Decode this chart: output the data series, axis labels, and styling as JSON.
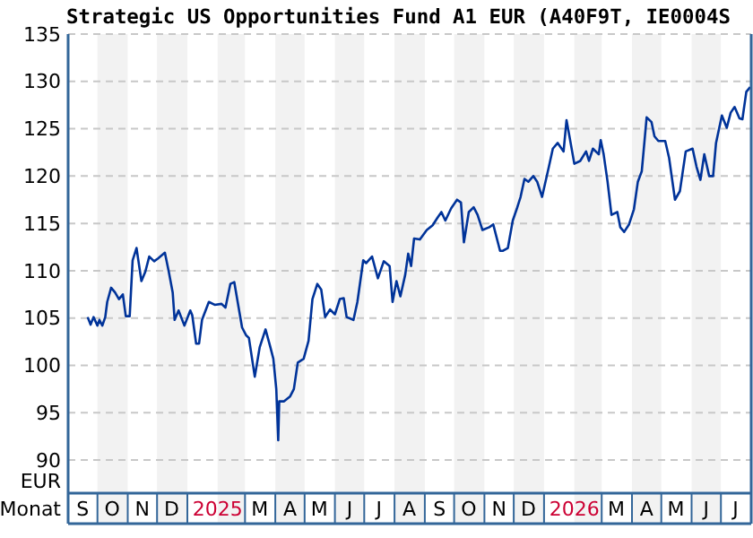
{
  "chart_data": {
    "type": "line",
    "title": "Strategic US Opportunities Fund A1 EUR (A40F9T, IE0004S",
    "xlabel": "Monat",
    "ylabel": "EUR",
    "xlim": [
      "2024-09-01",
      "2026-08-01"
    ],
    "xticks": [
      {
        "value": "2024-09-16",
        "label": "S"
      },
      {
        "value": "2024-10-16",
        "label": "O"
      },
      {
        "value": "2024-11-16",
        "label": "N"
      },
      {
        "value": "2024-12-16",
        "label": "D"
      },
      {
        "value": "2025-02-01",
        "label": "2025"
      },
      {
        "value": "2025-03-16",
        "label": "M"
      },
      {
        "value": "2025-04-16",
        "label": "A"
      },
      {
        "value": "2025-05-16",
        "label": "M"
      },
      {
        "value": "2025-06-16",
        "label": "J"
      },
      {
        "value": "2025-07-16",
        "label": "J"
      },
      {
        "value": "2025-08-16",
        "label": "A"
      },
      {
        "value": "2025-09-16",
        "label": "S"
      },
      {
        "value": "2025-10-16",
        "label": "O"
      },
      {
        "value": "2025-11-16",
        "label": "N"
      },
      {
        "value": "2025-12-16",
        "label": "D"
      },
      {
        "value": "2026-02-01",
        "label": "2026"
      },
      {
        "value": "2026-03-16",
        "label": "M"
      },
      {
        "value": "2026-04-16",
        "label": "A"
      },
      {
        "value": "2026-05-16",
        "label": "M"
      },
      {
        "value": "2026-06-16",
        "label": "J"
      },
      {
        "value": "2026-07-16",
        "label": "J"
      }
    ],
    "ylim": [
      86.5,
      135
    ],
    "yticks": [
      90,
      95,
      100,
      105,
      110,
      115,
      120,
      125,
      130,
      135
    ],
    "grid": "y",
    "bands": [
      {
        "axis": "x",
        "from": "2024-10-01",
        "to": "2024-11-01",
        "color": "#f2f2f2"
      },
      {
        "axis": "x",
        "from": "2024-12-01",
        "to": "2025-01-01",
        "color": "#f2f2f2"
      },
      {
        "axis": "x",
        "from": "2025-02-01",
        "to": "2025-03-01",
        "color": "#f2f2f2"
      },
      {
        "axis": "x",
        "from": "2025-04-01",
        "to": "2025-05-01",
        "color": "#f2f2f2"
      },
      {
        "axis": "x",
        "from": "2025-06-01",
        "to": "2025-07-01",
        "color": "#f2f2f2"
      },
      {
        "axis": "x",
        "from": "2025-08-01",
        "to": "2025-09-01",
        "color": "#f2f2f2"
      },
      {
        "axis": "x",
        "from": "2025-10-01",
        "to": "2025-11-01",
        "color": "#f2f2f2"
      },
      {
        "axis": "x",
        "from": "2025-12-01",
        "to": "2026-01-01",
        "color": "#f2f2f2"
      },
      {
        "axis": "x",
        "from": "2026-02-01",
        "to": "2026-03-01",
        "color": "#f2f2f2"
      },
      {
        "axis": "x",
        "from": "2026-04-01",
        "to": "2026-05-01",
        "color": "#f2f2f2"
      },
      {
        "axis": "x",
        "from": "2026-06-01",
        "to": "2026-07-01",
        "color": "#f2f2f2"
      }
    ],
    "series": [
      {
        "color": "#003399",
        "x": [
          "2024-09-21",
          "2024-09-24",
          "2024-09-27",
          "2024-10-01",
          "2024-10-03",
          "2024-10-06",
          "2024-10-09",
          "2024-10-11",
          "2024-10-15",
          "2024-10-19",
          "2024-10-23",
          "2024-10-27",
          "2024-10-30",
          "2024-11-03",
          "2024-11-06",
          "2024-11-10",
          "2024-11-15",
          "2024-11-19",
          "2024-11-23",
          "2024-11-28",
          "2024-12-02",
          "2024-12-09",
          "2024-12-13",
          "2024-12-17",
          "2024-12-19",
          "2024-12-23",
          "2024-12-29",
          "2025-01-04",
          "2025-01-06",
          "2025-01-10",
          "2025-01-13",
          "2025-01-16",
          "2025-01-23",
          "2025-01-29",
          "2025-02-05",
          "2025-02-09",
          "2025-02-14",
          "2025-02-18",
          "2025-02-22",
          "2025-02-26",
          "2025-03-02",
          "2025-03-05",
          "2025-03-11",
          "2025-03-16",
          "2025-03-22",
          "2025-03-27",
          "2025-03-30",
          "2025-04-02",
          "2025-04-04",
          "2025-04-05",
          "2025-04-10",
          "2025-04-16",
          "2025-04-20",
          "2025-04-24",
          "2025-04-30",
          "2025-05-05",
          "2025-05-09",
          "2025-05-14",
          "2025-05-18",
          "2025-05-22",
          "2025-05-27",
          "2025-06-01",
          "2025-06-06",
          "2025-06-10",
          "2025-06-13",
          "2025-06-20",
          "2025-06-24",
          "2025-06-30",
          "2025-07-03",
          "2025-07-09",
          "2025-07-15",
          "2025-07-21",
          "2025-07-27",
          "2025-07-30",
          "2025-08-03",
          "2025-08-07",
          "2025-08-12",
          "2025-08-15",
          "2025-08-18",
          "2025-08-21",
          "2025-08-27",
          "2025-09-03",
          "2025-09-09",
          "2025-09-14",
          "2025-09-18",
          "2025-09-22",
          "2025-09-28",
          "2025-10-04",
          "2025-10-08",
          "2025-10-11",
          "2025-10-16",
          "2025-10-21",
          "2025-10-25",
          "2025-10-30",
          "2025-11-06",
          "2025-11-10",
          "2025-11-17",
          "2025-11-20",
          "2025-11-25",
          "2025-11-30",
          "2025-12-04",
          "2025-12-08",
          "2025-12-12",
          "2025-12-16",
          "2025-12-21",
          "2025-12-25",
          "2025-12-30",
          "2026-01-06",
          "2026-01-10",
          "2026-01-15",
          "2026-01-21",
          "2026-01-24",
          "2026-01-27",
          "2026-02-01",
          "2026-02-07",
          "2026-02-13",
          "2026-02-16",
          "2026-02-20",
          "2026-02-26",
          "2026-02-28",
          "2026-03-03",
          "2026-03-07",
          "2026-03-11",
          "2026-03-17",
          "2026-03-20",
          "2026-03-24",
          "2026-03-29",
          "2026-04-03",
          "2026-04-07",
          "2026-04-11",
          "2026-04-16",
          "2026-04-21",
          "2026-04-24",
          "2026-04-28",
          "2026-05-05",
          "2026-05-09",
          "2026-05-12",
          "2026-05-15",
          "2026-05-20",
          "2026-05-26",
          "2026-06-02",
          "2026-06-06",
          "2026-06-10",
          "2026-06-14",
          "2026-06-19",
          "2026-06-23",
          "2026-06-26",
          "2026-07-02",
          "2026-07-07",
          "2026-07-11",
          "2026-07-15",
          "2026-07-20",
          "2026-07-23",
          "2026-07-27",
          "2026-07-31"
        ],
        "values": [
          105.1,
          104.3,
          105.1,
          104.2,
          104.8,
          104.2,
          105.1,
          106.7,
          108.2,
          107.7,
          107.0,
          107.5,
          105.2,
          105.2,
          111.1,
          112.4,
          108.9,
          109.9,
          111.5,
          111.0,
          111.3,
          111.9,
          109.9,
          107.7,
          104.8,
          105.8,
          104.2,
          105.8,
          105.3,
          102.3,
          102.3,
          104.8,
          106.7,
          106.4,
          106.5,
          106.1,
          108.6,
          108.8,
          106.4,
          104.0,
          103.2,
          102.9,
          98.8,
          101.9,
          103.8,
          101.9,
          100.7,
          97.5,
          92.1,
          96.2,
          96.2,
          96.7,
          97.5,
          100.3,
          100.7,
          102.6,
          107.0,
          108.6,
          108.0,
          105.1,
          105.9,
          105.4,
          107.0,
          107.1,
          105.1,
          104.8,
          106.7,
          111.1,
          110.8,
          111.5,
          109.2,
          111.0,
          110.5,
          106.7,
          108.9,
          107.3,
          109.6,
          111.8,
          110.5,
          113.4,
          113.3,
          114.3,
          114.8,
          115.6,
          116.2,
          115.3,
          116.6,
          117.5,
          117.2,
          113.0,
          116.2,
          116.7,
          115.9,
          114.3,
          114.6,
          114.9,
          112.1,
          112.1,
          112.4,
          115.3,
          116.5,
          117.8,
          119.7,
          119.4,
          120.0,
          119.4,
          117.8,
          121.0,
          122.9,
          123.5,
          122.6,
          125.9,
          124.2,
          121.3,
          121.6,
          122.6,
          121.6,
          122.9,
          122.3,
          123.8,
          122.3,
          119.4,
          115.9,
          116.2,
          114.6,
          114.1,
          114.9,
          116.5,
          119.4,
          120.5,
          126.2,
          125.7,
          124.2,
          123.7,
          123.7,
          121.9,
          119.7,
          117.5,
          118.4,
          122.6,
          122.9,
          121.0,
          119.6,
          122.3,
          120.0,
          120.0,
          123.5,
          126.4,
          125.1,
          126.7,
          127.3,
          126.1,
          126.0,
          128.9,
          129.4
        ]
      }
    ]
  }
}
